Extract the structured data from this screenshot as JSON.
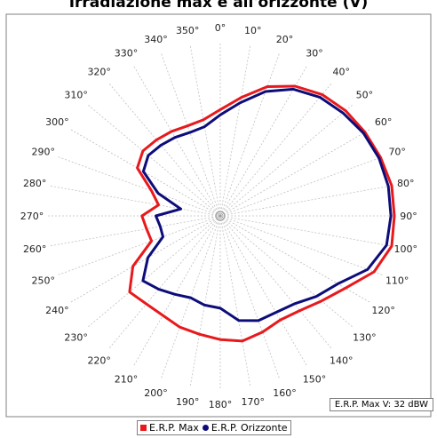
{
  "chart_data": {
    "type": "polar-line",
    "title": "Irradiazione max e all'orizzonte (V)",
    "angle_labels": [
      "0°",
      "10°",
      "20°",
      "30°",
      "40°",
      "50°",
      "60°",
      "70°",
      "80°",
      "90°",
      "100°",
      "110°",
      "120°",
      "130°",
      "140°",
      "150°",
      "160°",
      "170°",
      "180°",
      "190°",
      "200°",
      "210°",
      "220°",
      "230°",
      "240°",
      "250°",
      "260°",
      "270°",
      "280°",
      "290°",
      "300°",
      "310°",
      "320°",
      "330°",
      "340°",
      "350°"
    ],
    "angle_step_deg": 10,
    "radial_max": 1.0,
    "grid": true,
    "legend_position": "bottom",
    "colors": {
      "max": "#e8191c",
      "horizon": "#0d0d7a",
      "grid": "#c0c0c0"
    },
    "series": [
      {
        "name": "E.R.P. Max",
        "marker": "square",
        "angles_deg": [
          0,
          10,
          20,
          30,
          40,
          50,
          60,
          70,
          80,
          90,
          100,
          110,
          120,
          130,
          140,
          150,
          160,
          170,
          180,
          190,
          200,
          210,
          220,
          230,
          240,
          250,
          260,
          270,
          280,
          290,
          300,
          310,
          320,
          330,
          340,
          350
        ],
        "values": [
          0.61,
          0.69,
          0.79,
          0.86,
          0.91,
          0.94,
          0.96,
          0.98,
          1.0,
          1.0,
          1.0,
          0.94,
          0.83,
          0.76,
          0.71,
          0.69,
          0.71,
          0.73,
          0.71,
          0.69,
          0.68,
          0.66,
          0.66,
          0.68,
          0.58,
          0.42,
          0.43,
          0.45,
          0.36,
          0.42,
          0.55,
          0.58,
          0.57,
          0.56,
          0.55,
          0.56
        ]
      },
      {
        "name": "E.R.P. Orizzonte",
        "marker": "circle",
        "angles_deg": [
          0,
          10,
          20,
          30,
          40,
          50,
          60,
          70,
          80,
          90,
          100,
          110,
          120,
          130,
          140,
          150,
          160,
          170,
          180,
          190,
          200,
          210,
          220,
          230,
          240,
          250,
          260,
          270,
          280,
          290,
          300,
          310,
          320,
          330,
          340,
          350
        ],
        "values": [
          0.58,
          0.66,
          0.76,
          0.84,
          0.89,
          0.92,
          0.95,
          0.97,
          0.98,
          0.98,
          0.97,
          0.9,
          0.78,
          0.72,
          0.66,
          0.64,
          0.64,
          0.61,
          0.53,
          0.52,
          0.5,
          0.52,
          0.55,
          0.58,
          0.48,
          0.35,
          0.35,
          0.37,
          0.23,
          0.38,
          0.51,
          0.54,
          0.53,
          0.52,
          0.51,
          0.52
        ]
      }
    ],
    "annotation": "E.R.P. Max V: 32 dBW"
  },
  "legend": {
    "items": [
      "E.R.P. Max",
      "E.R.P. Orizzonte"
    ]
  }
}
